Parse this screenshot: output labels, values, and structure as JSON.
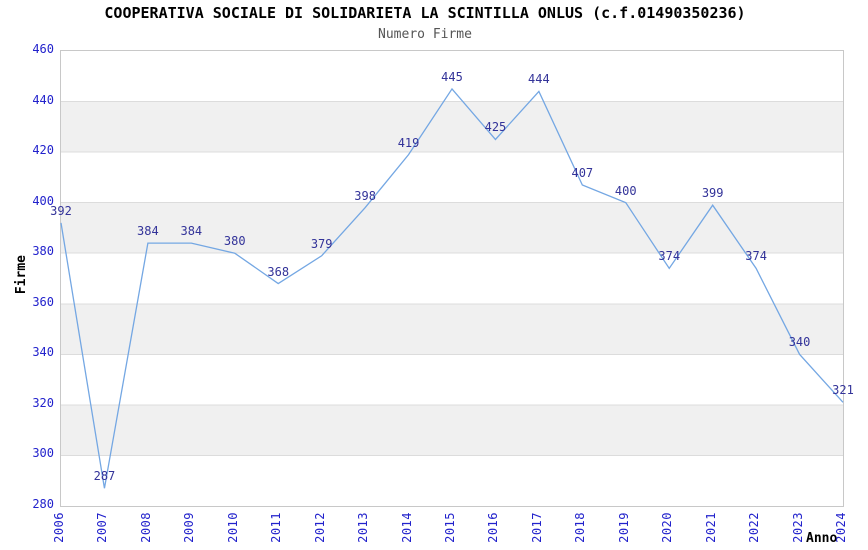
{
  "header": {
    "title": "COOPERATIVA SOCIALE DI SOLIDARIETA LA SCINTILLA ONLUS (c.f.01490350236)",
    "subtitle": "Numero Firme"
  },
  "chart_data": {
    "type": "line",
    "title": "COOPERATIVA SOCIALE DI SOLIDARIETA LA SCINTILLA ONLUS (c.f.01490350236)",
    "subtitle": "Numero Firme",
    "xlabel": "Anno",
    "ylabel": "Firme",
    "x": [
      2006,
      2007,
      2008,
      2009,
      2010,
      2011,
      2012,
      2013,
      2014,
      2015,
      2016,
      2017,
      2018,
      2019,
      2020,
      2021,
      2022,
      2023,
      2024
    ],
    "values": [
      392,
      287,
      384,
      384,
      380,
      368,
      379,
      398,
      419,
      445,
      425,
      444,
      407,
      400,
      374,
      399,
      374,
      340,
      321
    ],
    "ylim": [
      280,
      460
    ],
    "ytick_step": 20,
    "yticks": [
      280,
      300,
      320,
      340,
      360,
      380,
      400,
      420,
      440,
      460
    ],
    "grid": "horizontal-bands",
    "legend_position": "none",
    "colors": {
      "line": "#74a7e3",
      "data_label": "#333399",
      "tick_label": "#2222cc",
      "gridline": "#dcdcdc",
      "band": "#f0f0f0",
      "title": "#000000",
      "subtitle": "#555555"
    }
  }
}
